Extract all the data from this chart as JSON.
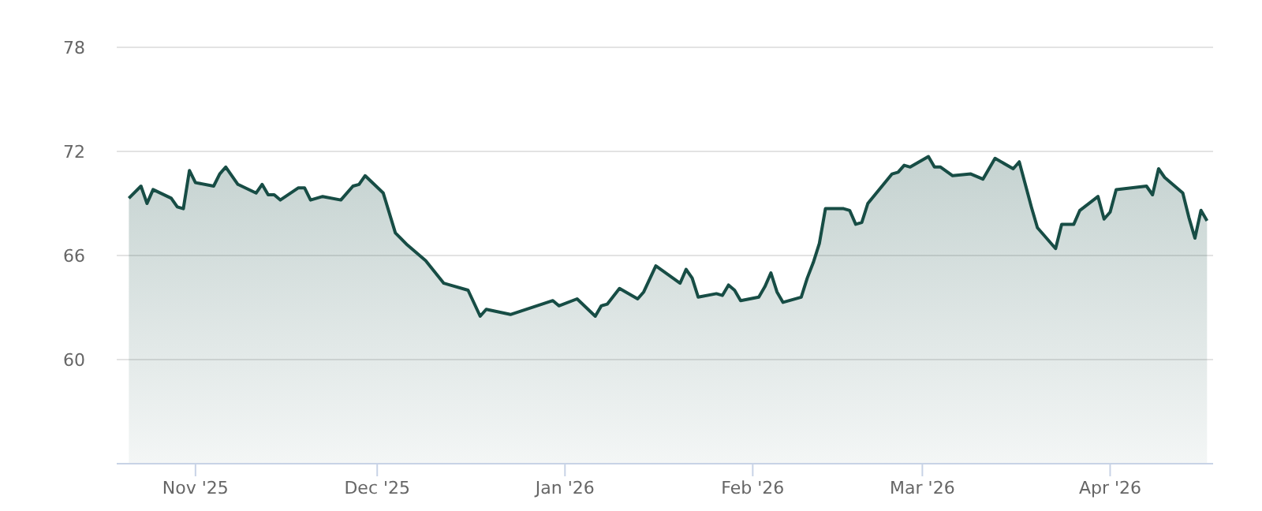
{
  "chart_data": {
    "type": "area",
    "x": [
      "2025-10-21",
      "2025-10-23",
      "2025-10-24",
      "2025-10-25",
      "2025-10-28",
      "2025-10-29",
      "2025-10-30",
      "2025-10-31",
      "2025-11-01",
      "2025-11-04",
      "2025-11-05",
      "2025-11-06",
      "2025-11-08",
      "2025-11-11",
      "2025-11-12",
      "2025-11-13",
      "2025-11-14",
      "2025-11-15",
      "2025-11-18",
      "2025-11-19",
      "2025-11-20",
      "2025-11-22",
      "2025-11-25",
      "2025-11-27",
      "2025-11-28",
      "2025-11-29",
      "2025-12-02",
      "2025-12-04",
      "2025-12-06",
      "2025-12-09",
      "2025-12-12",
      "2025-12-13",
      "2025-12-16",
      "2025-12-18",
      "2025-12-19",
      "2025-12-23",
      "2025-12-30",
      "2025-12-31",
      "2026-01-03",
      "2026-01-06",
      "2026-01-07",
      "2026-01-08",
      "2026-01-10",
      "2026-01-13",
      "2026-01-14",
      "2026-01-16",
      "2026-01-20",
      "2026-01-21",
      "2026-01-22",
      "2026-01-23",
      "2026-01-26",
      "2026-01-27",
      "2026-01-28",
      "2026-01-29",
      "2026-01-30",
      "2026-02-02",
      "2026-02-03",
      "2026-02-04",
      "2026-02-05",
      "2026-02-06",
      "2026-02-09",
      "2026-02-10",
      "2026-02-11",
      "2026-02-12",
      "2026-02-13",
      "2026-02-16",
      "2026-02-17",
      "2026-02-18",
      "2026-02-19",
      "2026-02-20",
      "2026-02-24",
      "2026-02-25",
      "2026-02-26",
      "2026-02-27",
      "2026-03-02",
      "2026-03-03",
      "2026-03-04",
      "2026-03-06",
      "2026-03-09",
      "2026-03-11",
      "2026-03-13",
      "2026-03-16",
      "2026-03-17",
      "2026-03-19",
      "2026-03-20",
      "2026-03-23",
      "2026-03-24",
      "2026-03-26",
      "2026-03-27",
      "2026-03-30",
      "2026-03-31",
      "2026-04-01",
      "2026-04-02",
      "2026-04-07",
      "2026-04-08",
      "2026-04-09",
      "2026-04-10",
      "2026-04-13",
      "2026-04-14",
      "2026-04-15",
      "2026-04-16",
      "2026-04-17"
    ],
    "series": [
      {
        "color": "#174d45",
        "values": [
          69.3,
          70.0,
          69.0,
          69.8,
          69.3,
          68.8,
          68.7,
          70.9,
          70.2,
          70.0,
          70.7,
          71.1,
          70.1,
          69.6,
          70.1,
          69.5,
          69.5,
          69.2,
          69.9,
          69.9,
          69.2,
          69.4,
          69.2,
          70.0,
          70.1,
          70.6,
          69.6,
          67.3,
          66.6,
          65.7,
          64.4,
          64.3,
          64.0,
          62.5,
          62.9,
          62.6,
          63.4,
          63.1,
          63.5,
          62.5,
          63.1,
          63.2,
          64.1,
          63.5,
          63.9,
          65.4,
          64.4,
          65.2,
          64.7,
          63.6,
          63.8,
          63.7,
          64.3,
          64.0,
          63.4,
          63.6,
          64.2,
          65.0,
          63.9,
          63.3,
          63.6,
          64.7,
          65.6,
          66.7,
          68.7,
          68.7,
          68.6,
          67.8,
          67.9,
          69.0,
          70.7,
          70.8,
          71.2,
          71.1,
          71.7,
          71.1,
          71.1,
          70.6,
          70.7,
          70.4,
          71.6,
          71.0,
          71.4,
          68.8,
          67.6,
          66.4,
          67.8,
          67.8,
          68.6,
          69.4,
          68.1,
          68.5,
          69.8,
          70.0,
          69.5,
          71.0,
          70.5,
          69.6,
          68.2,
          67.0,
          68.6,
          68.0
        ]
      }
    ],
    "xlim": [
      "2025-10-19",
      "2026-04-18"
    ],
    "xticks": [
      {
        "value": "2025-11-01",
        "label": "Nov '25"
      },
      {
        "value": "2025-12-01",
        "label": "Dec '25"
      },
      {
        "value": "2026-01-01",
        "label": "Jan '26"
      },
      {
        "value": "2026-02-01",
        "label": "Feb '26"
      },
      {
        "value": "2026-03-01",
        "label": "Mar '26"
      },
      {
        "value": "2026-04-01",
        "label": "Apr '26"
      }
    ],
    "ylim": [
      54,
      78
    ],
    "yticks": [
      60,
      66,
      72,
      78
    ],
    "grid": "y"
  }
}
